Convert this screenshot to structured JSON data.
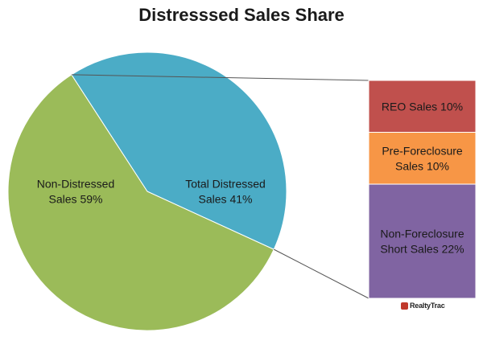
{
  "colors": {
    "non_distressed": "#9BBB59",
    "distressed": "#4BACC6",
    "reo": "#C0504D",
    "pre_foreclosure": "#F79646",
    "short_sales": "#8064A2"
  },
  "chart_data": [
    {
      "type": "pie",
      "title": "Distresssed Sales Share",
      "slices": [
        {
          "name": "Non-Distressed Sales",
          "value": 59,
          "label_lines": [
            "Non-Distressed",
            "Sales 59%"
          ]
        },
        {
          "name": "Total Distressed Sales",
          "value": 41,
          "label_lines": [
            "Total Distressed",
            "Sales 41%"
          ]
        }
      ]
    },
    {
      "type": "bar",
      "stacked": true,
      "segments": [
        {
          "name": "REO Sales",
          "value": 10,
          "label_lines": [
            "REO Sales 10%"
          ]
        },
        {
          "name": "Pre-Foreclosure Sales",
          "value": 10,
          "label_lines": [
            "Pre-Foreclosure",
            "Sales 10%"
          ]
        },
        {
          "name": "Non-Foreclosure Short Sales",
          "value": 22,
          "label_lines": [
            "Non-Foreclosure",
            "Short Sales 22%"
          ]
        }
      ]
    }
  ],
  "logo_text": "RealtyTrac"
}
